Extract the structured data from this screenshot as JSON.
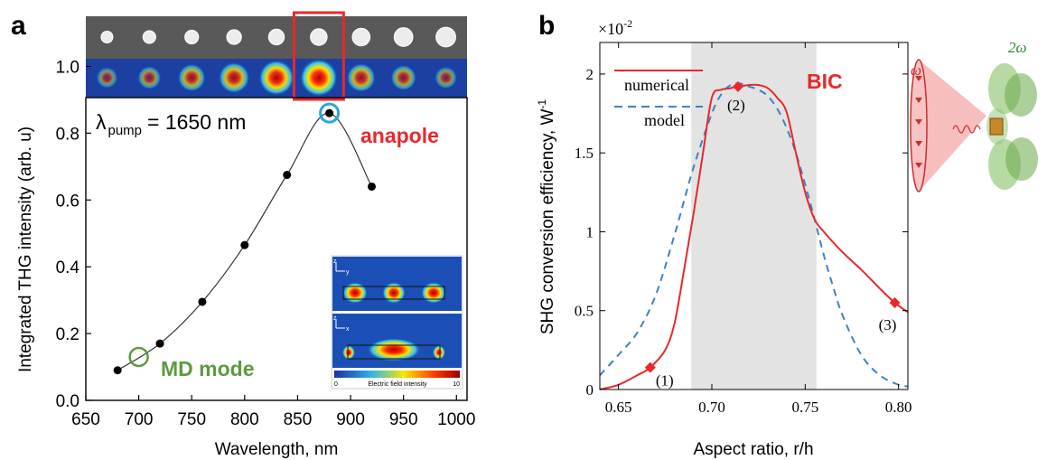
{
  "colors": {
    "red": "#e8282b",
    "green": "#5d9b3e",
    "blue_circle": "#2aa6dc",
    "dashed_blue": "#3c82c8",
    "shade": "#e3e3e3",
    "sem_bg": "#595959",
    "map_bg": "#1c3fa2"
  },
  "chart_data": [
    {
      "panel_label": "a",
      "type": "line",
      "title": "",
      "xlabel": "Wavelength, nm",
      "ylabel": "Integrated THG intensity (arb. u)",
      "xlim": [
        650,
        1010
      ],
      "ylim": [
        0,
        1.15
      ],
      "xticks": [
        650,
        700,
        750,
        800,
        850,
        900,
        950,
        1000
      ],
      "yticks": [
        0.0,
        0.2,
        0.4,
        0.6,
        0.8,
        1.0
      ],
      "ytick_labels": [
        "0.0",
        "0.2",
        "0.4",
        "0.6",
        "0.8",
        "1.0"
      ],
      "series": [
        {
          "x": [
            680,
            720,
            760,
            800,
            840,
            880,
            920
          ],
          "y": [
            0.09,
            0.17,
            0.295,
            0.465,
            0.675,
            0.86,
            0.64
          ]
        }
      ],
      "annotations": {
        "pump_symbol": "λ",
        "pump_sub": "pump",
        "pump_value": "= 1650 nm",
        "anapole": "anapole",
        "md_mode": "MD mode"
      },
      "top_strip": {
        "particle_count": 9,
        "intensity_levels": [
          0.25,
          0.35,
          0.55,
          0.7,
          0.9,
          1.0,
          0.6,
          0.45,
          0.3
        ],
        "highlight_index": 5
      },
      "inset": {
        "axis_z": "z",
        "axis_y": "y",
        "axis_x": "x",
        "colorbar_min": "0",
        "colorbar_label": "Electric field intensity",
        "colorbar_max": "10"
      }
    },
    {
      "panel_label": "b",
      "type": "line",
      "title": "",
      "xlabel": "Aspect ratio, r/h",
      "ylabel_main": "SHG conversion efficiency, W",
      "ylabel_sup": "-1",
      "scale_base": "×10",
      "scale_exp": "-2",
      "xlim": [
        0.64,
        0.805
      ],
      "ylim": [
        0,
        2.2
      ],
      "xticks": [
        0.65,
        0.7,
        0.75,
        0.8
      ],
      "xtick_labels": [
        "0.65",
        "0.70",
        "0.75",
        "0.80"
      ],
      "yticks": [
        0,
        0.5,
        1,
        1.5,
        2
      ],
      "ytick_labels": [
        "0",
        "0.5",
        "1",
        "1.5",
        "2"
      ],
      "shaded_region": [
        0.689,
        0.756
      ],
      "legend": [
        "numerical",
        "model"
      ],
      "legend_placement": "top-left",
      "series": [
        {
          "name": "numerical",
          "x": [
            0.64,
            0.65,
            0.66,
            0.667,
            0.675,
            0.68,
            0.685,
            0.69,
            0.695,
            0.7,
            0.705,
            0.71,
            0.713,
            0.72,
            0.725,
            0.73,
            0.735,
            0.74,
            0.745,
            0.75,
            0.755,
            0.76,
            0.77,
            0.78,
            0.79,
            0.798,
            0.805
          ],
          "y": [
            0.0,
            0.03,
            0.09,
            0.14,
            0.25,
            0.42,
            0.75,
            1.1,
            1.48,
            1.85,
            1.9,
            1.91,
            1.92,
            1.93,
            1.93,
            1.91,
            1.85,
            1.76,
            1.5,
            1.25,
            1.08,
            1.0,
            0.87,
            0.76,
            0.64,
            0.55,
            0.49
          ]
        },
        {
          "name": "model",
          "x": [
            0.64,
            0.65,
            0.66,
            0.67,
            0.68,
            0.69,
            0.7,
            0.705,
            0.71,
            0.715,
            0.72,
            0.725,
            0.73,
            0.735,
            0.74,
            0.745,
            0.75,
            0.755,
            0.76,
            0.765,
            0.77,
            0.78,
            0.79,
            0.8,
            0.805
          ],
          "y": [
            0.09,
            0.22,
            0.36,
            0.6,
            0.98,
            1.4,
            1.75,
            1.87,
            1.93,
            1.94,
            1.92,
            1.9,
            1.86,
            1.78,
            1.66,
            1.5,
            1.3,
            1.08,
            0.85,
            0.65,
            0.47,
            0.22,
            0.09,
            0.03,
            0.02
          ]
        }
      ],
      "markers": [
        {
          "x": 0.667,
          "y": 0.14,
          "label": "(1)"
        },
        {
          "x": 0.714,
          "y": 1.92,
          "label": "(2)"
        },
        {
          "x": 0.798,
          "y": 0.55,
          "label": "(3)"
        }
      ],
      "annotations": {
        "bic": "BIC",
        "omega": "ω",
        "two_omega": "2ω"
      }
    }
  ]
}
